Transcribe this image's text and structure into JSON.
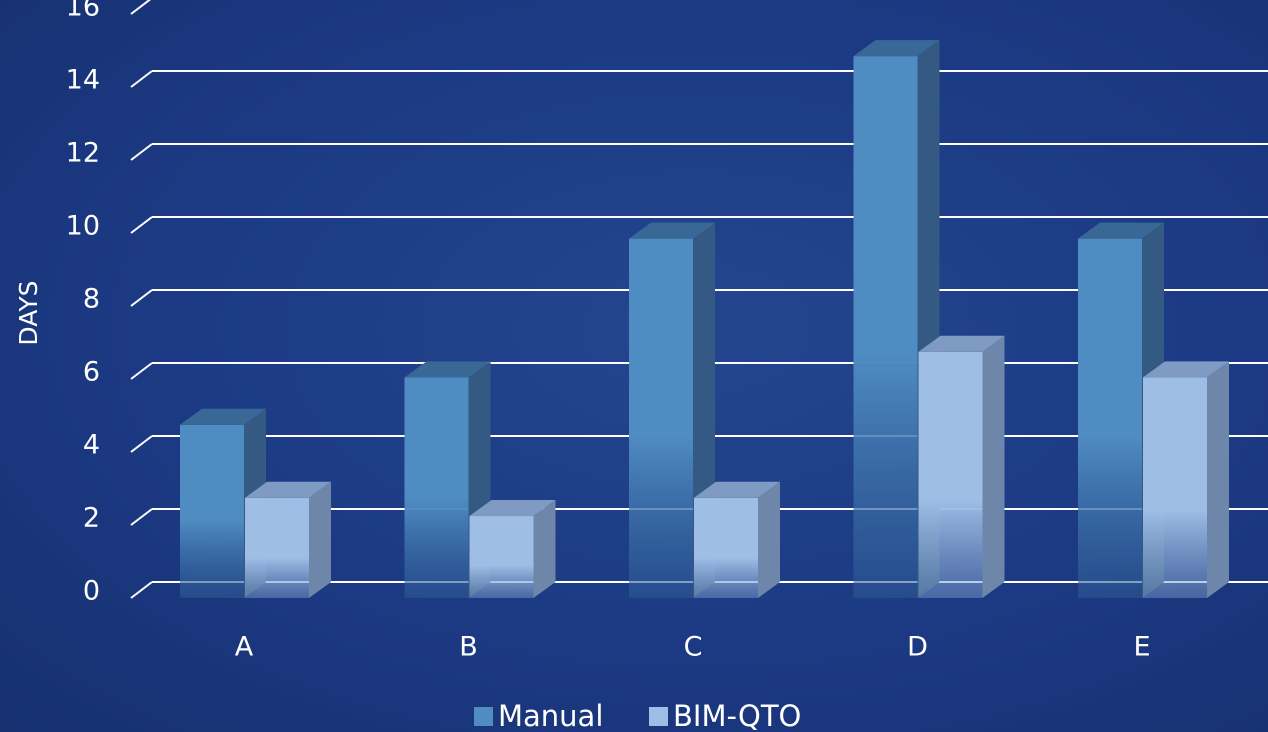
{
  "chart_data": {
    "type": "bar",
    "categories": [
      "A",
      "B",
      "C",
      "D",
      "E"
    ],
    "series": [
      {
        "name": "Manual",
        "values": [
          4.8,
          6.1,
          9.9,
          14.9,
          9.9
        ]
      },
      {
        "name": "BIM-QTO",
        "values": [
          2.8,
          2.3,
          2.8,
          6.8,
          6.1
        ]
      }
    ],
    "ylabel": "DAYS",
    "xlabel": "",
    "ylim": [
      0,
      16
    ],
    "yticks": [
      "0",
      "2",
      "4",
      "6",
      "8",
      "10",
      "12",
      "14",
      "16"
    ],
    "grid": true,
    "legend": "bottom",
    "colors": {
      "manual_front": "#4f8cc2",
      "manual_side": "#345a84",
      "manual_top": "#3a6896",
      "bim_front": "#9ebee6",
      "bim_side": "#6d86aa",
      "bim_top": "#7f9bc3",
      "grid": "#ffffff"
    }
  }
}
